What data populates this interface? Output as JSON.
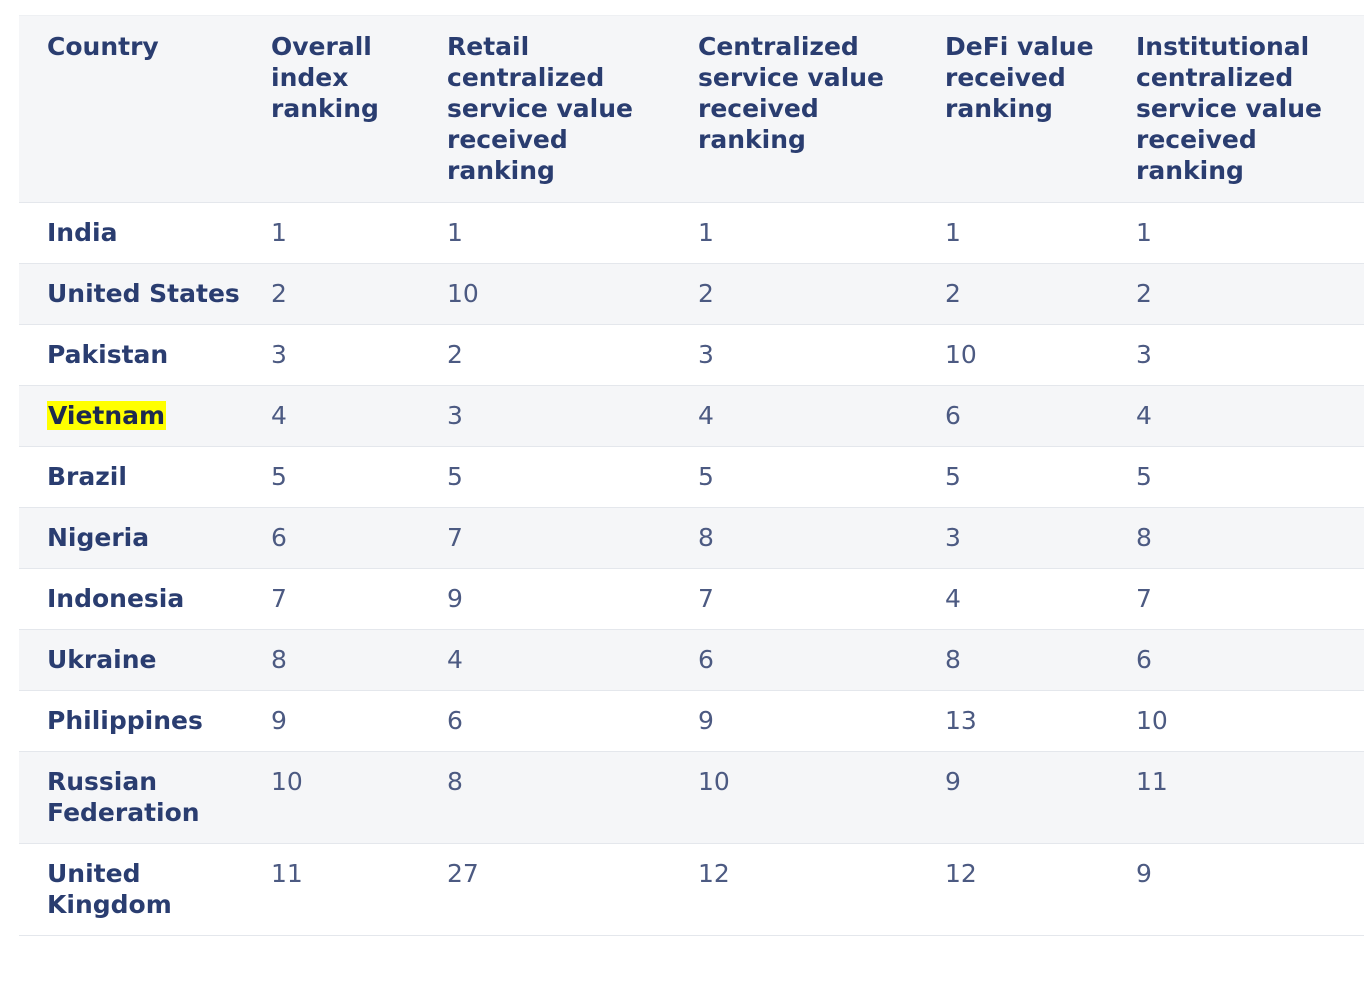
{
  "table": {
    "headers": [
      "Country",
      "Overall index ranking",
      "Retail centralized service value received ranking",
      "Centralized service value received ranking",
      "DeFi value received ranking",
      "Institutional centralized service value received ranking"
    ],
    "highlight_color": "#ffff00",
    "highlighted_country": "Vietnam",
    "rows": [
      {
        "country": "India",
        "values": [
          "1",
          "1",
          "1",
          "1",
          "1"
        ]
      },
      {
        "country": "United States",
        "values": [
          "2",
          "10",
          "2",
          "2",
          "2"
        ]
      },
      {
        "country": "Pakistan",
        "values": [
          "3",
          "2",
          "3",
          "10",
          "3"
        ]
      },
      {
        "country": "Vietnam",
        "values": [
          "4",
          "3",
          "4",
          "6",
          "4"
        ]
      },
      {
        "country": "Brazil",
        "values": [
          "5",
          "5",
          "5",
          "5",
          "5"
        ]
      },
      {
        "country": "Nigeria",
        "values": [
          "6",
          "7",
          "8",
          "3",
          "8"
        ]
      },
      {
        "country": "Indonesia",
        "values": [
          "7",
          "9",
          "7",
          "4",
          "7"
        ]
      },
      {
        "country": "Ukraine",
        "values": [
          "8",
          "4",
          "6",
          "8",
          "6"
        ]
      },
      {
        "country": "Philippines",
        "values": [
          "9",
          "6",
          "9",
          "13",
          "10"
        ]
      },
      {
        "country": "Russian Federation",
        "values": [
          "10",
          "8",
          "10",
          "9",
          "11"
        ]
      },
      {
        "country": "United Kingdom",
        "values": [
          "11",
          "27",
          "12",
          "12",
          "9"
        ]
      }
    ]
  }
}
